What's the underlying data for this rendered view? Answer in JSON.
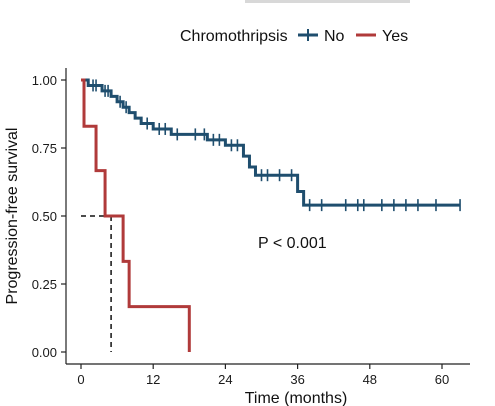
{
  "chart_data": {
    "type": "line",
    "subtype": "kaplan-meier",
    "xlabel": "Time (months)",
    "ylabel": "Progression-free survival",
    "xlim": [
      -2,
      64
    ],
    "ylim": [
      0,
      1.0
    ],
    "xticks": [
      0,
      12,
      24,
      36,
      48,
      60
    ],
    "yticks": [
      0.0,
      0.25,
      0.5,
      0.75,
      1.0
    ],
    "ytick_labels": [
      "0.00",
      "0.25",
      "0.50",
      "0.75",
      "1.00"
    ],
    "grid": false,
    "legend": {
      "position": "top",
      "title": "Chromothripsis",
      "entries": [
        "No",
        "Yes"
      ]
    },
    "annotation": "P < 0.001",
    "series": [
      {
        "name": "No",
        "color": "#1f4e6e",
        "steps": [
          [
            0,
            1.0
          ],
          [
            1.2,
            0.98
          ],
          [
            3.5,
            0.96
          ],
          [
            5,
            0.94
          ],
          [
            6,
            0.92
          ],
          [
            7,
            0.9
          ],
          [
            8,
            0.88
          ],
          [
            9,
            0.86
          ],
          [
            10,
            0.84
          ],
          [
            12,
            0.82
          ],
          [
            15,
            0.8
          ],
          [
            21,
            0.78
          ],
          [
            24,
            0.76
          ],
          [
            27,
            0.72
          ],
          [
            28,
            0.68
          ],
          [
            29,
            0.65
          ],
          [
            36,
            0.59
          ],
          [
            37,
            0.54
          ],
          [
            63,
            0.54
          ]
        ],
        "censor_times": [
          2,
          2.5,
          4,
          4.5,
          6.5,
          7.5,
          11,
          13,
          14,
          16,
          19,
          20.5,
          22,
          23,
          25,
          26,
          30,
          31,
          33,
          35,
          38,
          40,
          44,
          46,
          47,
          50,
          52,
          54,
          56,
          59,
          63
        ]
      },
      {
        "name": "Yes",
        "color": "#b03a3a",
        "steps": [
          [
            0,
            1.0
          ],
          [
            0.5,
            0.83
          ],
          [
            2.5,
            0.667
          ],
          [
            4,
            0.5
          ],
          [
            7,
            0.333
          ],
          [
            8,
            0.167
          ],
          [
            18,
            0.0
          ]
        ],
        "censor_times": []
      }
    ],
    "median_marker": {
      "x": 5,
      "y": 0.5
    }
  }
}
